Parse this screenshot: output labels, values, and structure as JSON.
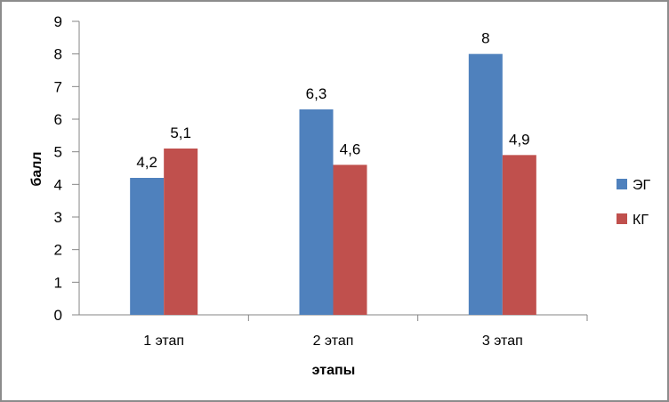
{
  "chart_data": {
    "type": "bar",
    "title": "",
    "xlabel": "этапы",
    "ylabel": "балл",
    "ylim": [
      0,
      9
    ],
    "yticks": [
      "0",
      "1",
      "2",
      "3",
      "4",
      "5",
      "6",
      "7",
      "8",
      "9"
    ],
    "grid": false,
    "legend_position": "right",
    "categories": [
      "1 этап",
      "2 этап",
      "3 этап"
    ],
    "series": [
      {
        "name": "ЭГ",
        "color": "#4f81bd",
        "values": [
          4.2,
          6.3,
          8
        ],
        "labels": [
          "4,2",
          "6,3",
          "8"
        ]
      },
      {
        "name": "КГ",
        "color": "#c0504d",
        "values": [
          5.1,
          4.6,
          4.9
        ],
        "labels": [
          "5,1",
          "4,6",
          "4,9"
        ]
      }
    ]
  }
}
